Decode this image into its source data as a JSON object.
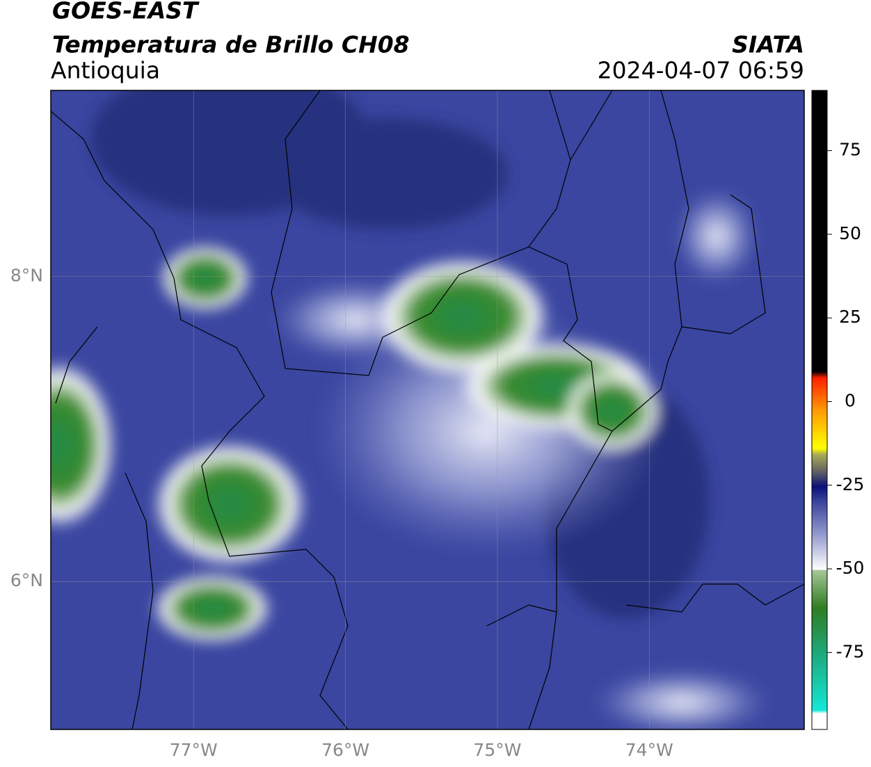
{
  "header": {
    "title": "GOES-EAST",
    "subtitle": "Temperatura de Brillo CH08",
    "region": "Antioquia",
    "source": "SIATA",
    "datetime": "2024-04-07 06:59"
  },
  "map": {
    "xlim": [
      -77.94,
      -72.98
    ],
    "ylim": [
      5.03,
      9.22
    ],
    "xticks": [
      {
        "value": -77,
        "label": "77°W"
      },
      {
        "value": -76,
        "label": "76°W"
      },
      {
        "value": -75,
        "label": "75°W"
      },
      {
        "value": -74,
        "label": "74°W"
      }
    ],
    "yticks": [
      {
        "value": 6,
        "label": "6°N"
      },
      {
        "value": 8,
        "label": "8°N"
      }
    ]
  },
  "colorbar": {
    "lim": [
      -98,
      93
    ],
    "ticks": [
      75,
      50,
      25,
      0,
      -25,
      -50,
      -75
    ]
  }
}
